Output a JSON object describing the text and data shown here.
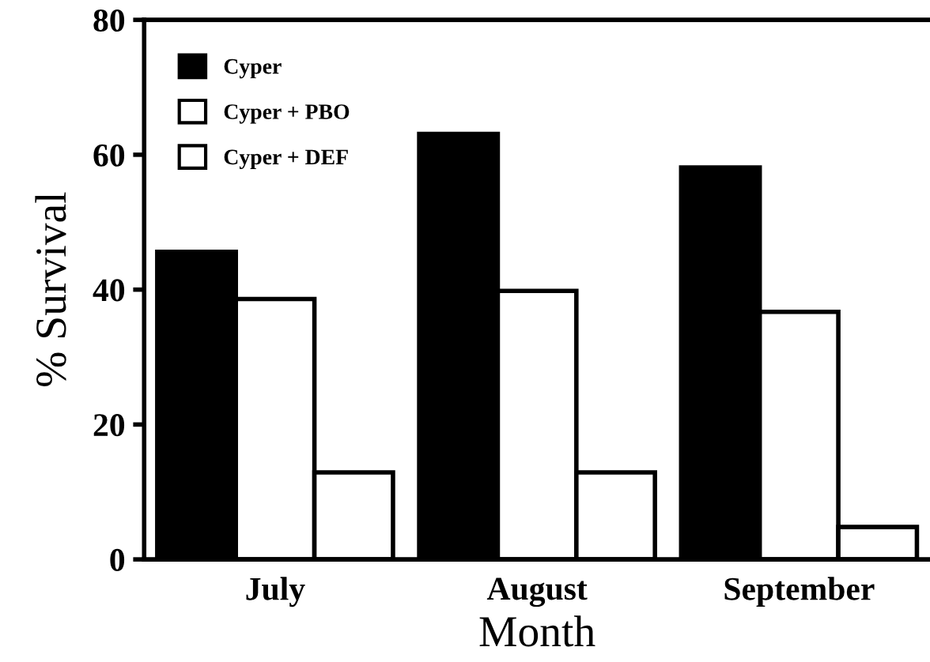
{
  "chart_data": {
    "type": "bar",
    "xlabel": "Month",
    "ylabel": "% Survival",
    "categories": [
      "July",
      "August",
      "September"
    ],
    "series": [
      {
        "name": "Cyper",
        "color": "#000000",
        "values": [
          45.6,
          63.1,
          58.1
        ]
      },
      {
        "name": "Cyper + PBO",
        "color": "#ffffff",
        "values": [
          38.6,
          39.8,
          36.7
        ]
      },
      {
        "name": "Cyper + DEF",
        "color": "#ffffff",
        "values": [
          12.9,
          12.9,
          4.8
        ]
      }
    ],
    "ylim": [
      0,
      80
    ],
    "yticks": [
      0,
      20,
      40,
      60,
      80
    ],
    "grid": false,
    "legend": "top left"
  }
}
